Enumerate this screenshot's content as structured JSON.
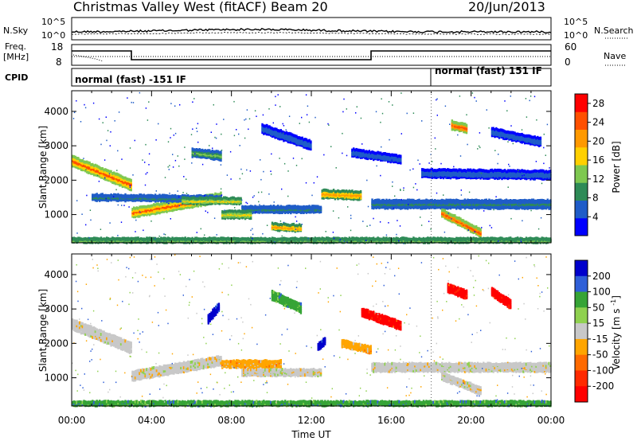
{
  "header": {
    "title_left": "Christmas Valley West (fitACF)",
    "title_beam": "Beam 20",
    "title_date": "20/Jun/2013"
  },
  "panels": {
    "nsky": {
      "label": "N.Sky",
      "tick_top": "10^5",
      "tick_bottom": "10^0"
    },
    "nsearch": {
      "label": "N.Search",
      "tick_top": "10^5",
      "tick_bottom": "10^0"
    },
    "freq": {
      "label_line1": "Freq.",
      "label_line2": "[MHz]",
      "tick_top": "18",
      "tick_bottom": "8"
    },
    "nave": {
      "label": "Nave",
      "tick_top": "60",
      "tick_bottom": "0"
    },
    "cpid": {
      "label": "CPID",
      "mode_a": "normal (fast) -151 IF",
      "mode_b": "normal (fast) 151 IF"
    }
  },
  "chart_data": [
    {
      "type": "heatmap",
      "name": "power",
      "xlabel": "Time UT",
      "ylabel": "Slant Range [km]",
      "x_range_hours": [
        0,
        24
      ],
      "ylim": [
        180,
        4600
      ],
      "y_ticks": [
        1000,
        2000,
        3000,
        4000
      ],
      "x_tick_labels": [
        "00:00",
        "04:00",
        "08:00",
        "12:00",
        "16:00",
        "20:00",
        "00:00"
      ],
      "colorbar": {
        "label": "Power [dB]",
        "ticks": [
          4,
          8,
          12,
          16,
          20,
          24,
          28
        ],
        "range": [
          0,
          30
        ],
        "colors": [
          "#0000ff",
          "#1f5cc8",
          "#2e8b57",
          "#7ec850",
          "#ffd000",
          "#ff9900",
          "#ff5000",
          "#ff0000"
        ]
      },
      "echo_regions": [
        {
          "t0": 0.0,
          "t1": 3.0,
          "r_start": 2550,
          "r_end": 1850,
          "width": 260,
          "level": 24
        },
        {
          "t0": 3.0,
          "t1": 7.5,
          "r_start": 1050,
          "r_end": 1500,
          "width": 230,
          "level": 24
        },
        {
          "t0": 1.0,
          "t1": 7.5,
          "r_start": 1500,
          "r_end": 1450,
          "width": 140,
          "level": 8
        },
        {
          "t0": 5.5,
          "t1": 8.5,
          "r_start": 1400,
          "r_end": 1400,
          "width": 140,
          "level": 16
        },
        {
          "t0": 8.5,
          "t1": 12.5,
          "r_start": 1150,
          "r_end": 1150,
          "width": 150,
          "level": 8
        },
        {
          "t0": 7.5,
          "t1": 9.0,
          "r_start": 1000,
          "r_end": 1000,
          "width": 180,
          "level": 18
        },
        {
          "t0": 10.0,
          "t1": 11.5,
          "r_start": 650,
          "r_end": 600,
          "width": 160,
          "level": 20
        },
        {
          "t0": 12.5,
          "t1": 14.5,
          "r_start": 1600,
          "r_end": 1550,
          "width": 200,
          "level": 20
        },
        {
          "t0": 15.0,
          "t1": 24.0,
          "r_start": 1300,
          "r_end": 1300,
          "width": 200,
          "level": 8
        },
        {
          "t0": 18.5,
          "t1": 20.5,
          "r_start": 1050,
          "r_end": 450,
          "width": 180,
          "level": 26
        },
        {
          "t0": 9.5,
          "t1": 12.0,
          "r_start": 3500,
          "r_end": 3000,
          "width": 220,
          "level": 6
        },
        {
          "t0": 6.0,
          "t1": 7.5,
          "r_start": 2800,
          "r_end": 2700,
          "width": 200,
          "level": 12
        },
        {
          "t0": 14.0,
          "t1": 16.5,
          "r_start": 2800,
          "r_end": 2600,
          "width": 180,
          "level": 6
        },
        {
          "t0": 17.5,
          "t1": 24.0,
          "r_start": 2200,
          "r_end": 2150,
          "width": 200,
          "level": 6
        },
        {
          "t0": 19.0,
          "t1": 19.8,
          "r_start": 3600,
          "r_end": 3500,
          "width": 200,
          "level": 26
        },
        {
          "t0": 21.0,
          "t1": 23.5,
          "r_start": 3400,
          "r_end": 3100,
          "width": 200,
          "level": 6
        },
        {
          "t0": 0.0,
          "t1": 24.0,
          "r_start": 250,
          "r_end": 250,
          "width": 90,
          "level": 14
        }
      ]
    },
    {
      "type": "heatmap",
      "name": "velocity",
      "xlabel": "Time UT",
      "ylabel": "Slant Range [km]",
      "x_range_hours": [
        0,
        24
      ],
      "ylim": [
        180,
        4600
      ],
      "y_ticks": [
        1000,
        2000,
        3000,
        4000
      ],
      "x_tick_labels": [
        "00:00",
        "04:00",
        "08:00",
        "12:00",
        "16:00",
        "20:00",
        "00:00"
      ],
      "colorbar": {
        "label": "Velocity [m s^-1]",
        "tick_labels": [
          "200",
          "100",
          "50",
          "15",
          "-15",
          "-50",
          "-100",
          "-200"
        ],
        "colors": [
          "#0000cc",
          "#2f5fd8",
          "#36a436",
          "#8fd14f",
          "#c8c8c8",
          "#ffa500",
          "#ff6a00",
          "#ff2a00",
          "#ff0000"
        ]
      },
      "echo_regions": [
        {
          "t0": 0.0,
          "t1": 3.0,
          "r_start": 2550,
          "r_end": 1850,
          "width": 260,
          "cls": "gray"
        },
        {
          "t0": 3.0,
          "t1": 7.5,
          "r_start": 1050,
          "r_end": 1500,
          "width": 230,
          "cls": "gray"
        },
        {
          "t0": 7.5,
          "t1": 10.5,
          "r_start": 1400,
          "r_end": 1400,
          "width": 160,
          "cls": "orange"
        },
        {
          "t0": 8.5,
          "t1": 12.5,
          "r_start": 1150,
          "r_end": 1150,
          "width": 150,
          "cls": "gray"
        },
        {
          "t0": 15.0,
          "t1": 24.0,
          "r_start": 1300,
          "r_end": 1300,
          "width": 200,
          "cls": "gray"
        },
        {
          "t0": 18.5,
          "t1": 20.5,
          "r_start": 1050,
          "r_end": 600,
          "width": 180,
          "cls": "gray"
        },
        {
          "t0": 6.8,
          "t1": 7.4,
          "r_start": 2700,
          "r_end": 3100,
          "width": 200,
          "cls": "blue"
        },
        {
          "t0": 12.3,
          "t1": 12.7,
          "r_start": 1900,
          "r_end": 2100,
          "width": 160,
          "cls": "blue"
        },
        {
          "t0": 14.5,
          "t1": 16.5,
          "r_start": 2900,
          "r_end": 2500,
          "width": 200,
          "cls": "red"
        },
        {
          "t0": 18.8,
          "t1": 19.8,
          "r_start": 3600,
          "r_end": 3400,
          "width": 200,
          "cls": "red"
        },
        {
          "t0": 21.0,
          "t1": 22.0,
          "r_start": 3500,
          "r_end": 3100,
          "width": 200,
          "cls": "red"
        },
        {
          "t0": 10.0,
          "t1": 11.5,
          "r_start": 3400,
          "r_end": 3000,
          "width": 220,
          "cls": "green"
        },
        {
          "t0": 0.0,
          "t1": 24.0,
          "r_start": 250,
          "r_end": 250,
          "width": 90,
          "cls": "green"
        },
        {
          "t0": 13.5,
          "t1": 15.0,
          "r_start": 2000,
          "r_end": 1800,
          "width": 160,
          "cls": "orange"
        }
      ]
    }
  ]
}
